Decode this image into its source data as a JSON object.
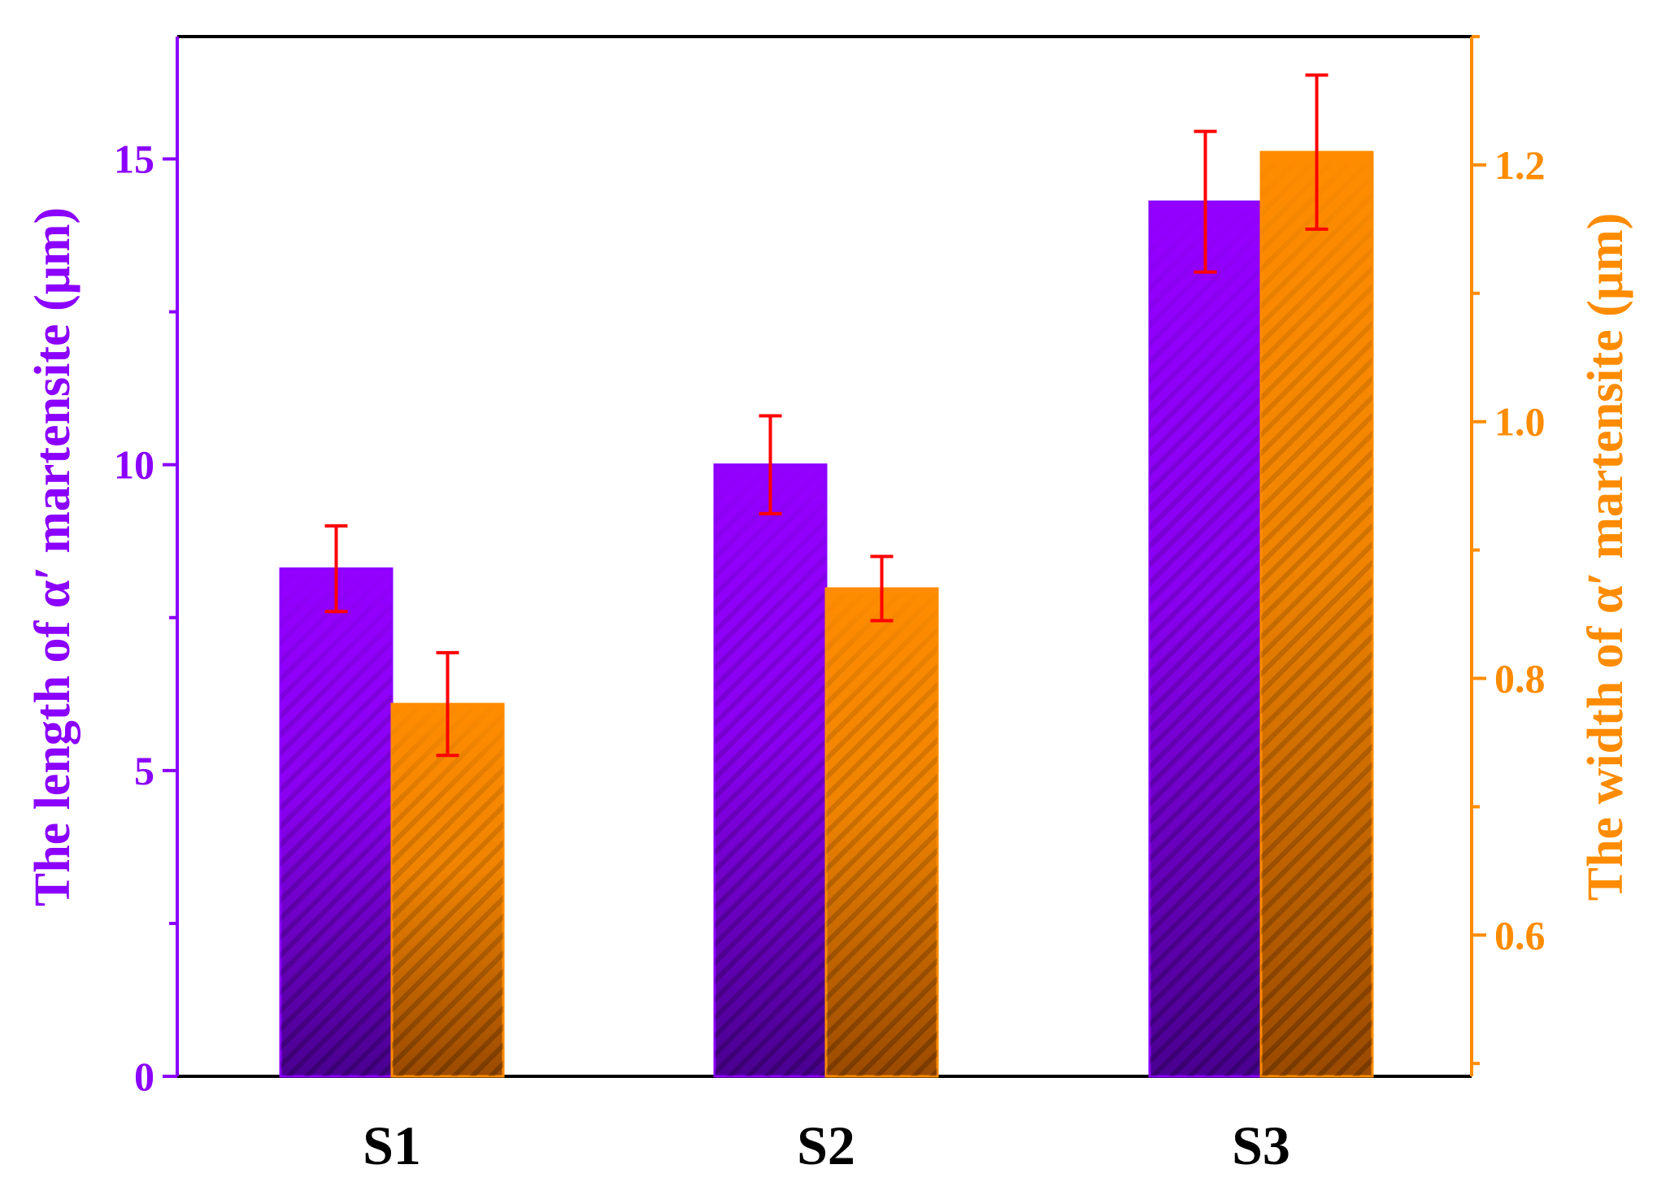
{
  "chart_data": {
    "type": "bar",
    "categories": [
      "S1",
      "S2",
      "S3"
    ],
    "series": [
      {
        "name": "The length of α′ martensite (μm)",
        "axis": "left",
        "color": "#8B00FF",
        "values": [
          8.3,
          10.0,
          14.3
        ],
        "errors": [
          0.7,
          0.8,
          1.15
        ]
      },
      {
        "name": "The width of α′ martensite (μm)",
        "axis": "right",
        "color": "#FF8C00",
        "values": [
          0.78,
          0.87,
          1.21
        ],
        "errors": [
          0.04,
          0.025,
          0.06
        ]
      }
    ],
    "error_bar_color": "#FF0000",
    "left_axis": {
      "label": "The length of α′ martensite (μm)",
      "ylim": [
        0,
        17
      ],
      "ticks": [
        0,
        5,
        10,
        15
      ],
      "tick_labels": [
        "0",
        "5",
        "10",
        "15"
      ],
      "color": "#8B00FF"
    },
    "right_axis": {
      "label": "The width of α′ martensite (μm)",
      "ylim": [
        0.49,
        1.3
      ],
      "ticks": [
        0.6,
        0.8,
        1.0,
        1.2
      ],
      "tick_labels": [
        "0.6",
        "0.8",
        "1.0",
        "1.2"
      ],
      "color": "#FF8C00"
    },
    "legend": "none",
    "grid": false
  },
  "left_axis_title": "The length of α′ martensite (μm)",
  "right_axis_title": "The width of α′ martensite (μm)"
}
